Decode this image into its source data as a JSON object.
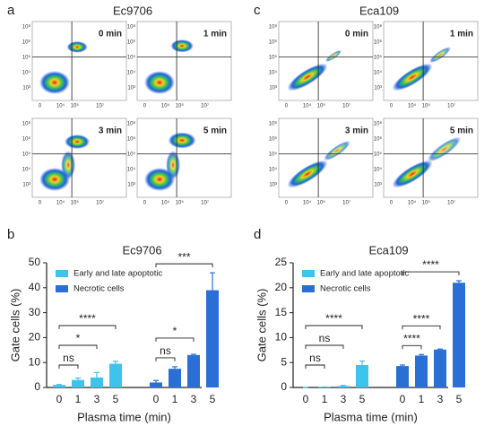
{
  "panels": {
    "a": {
      "label": "a",
      "title": "Ec9706",
      "times": [
        "0 min",
        "1 min",
        "3 min",
        "5 min"
      ]
    },
    "c": {
      "label": "c",
      "title": "Eca109",
      "times": [
        "0 min",
        "1 min",
        "3 min",
        "5 min"
      ]
    },
    "y_ticks": [
      "10⁸",
      "10⁶",
      "10⁵",
      "10⁴",
      "10³"
    ],
    "x_ticks": [
      "0",
      "10⁴",
      "10⁵",
      "10⁷"
    ]
  },
  "chart_data": [
    {
      "type": "bar",
      "label": "b",
      "title": "Ec9706",
      "y_label": "Gate cells (%)",
      "x_label": "Plasma time (min)",
      "categories": [
        "0",
        "1",
        "3",
        "5"
      ],
      "series": [
        {
          "name": "Early and late apoptotic",
          "color": "#3ec3ec",
          "values": [
            1,
            3,
            4,
            9.5
          ],
          "errors": [
            0.2,
            0.8,
            2,
            1
          ]
        },
        {
          "name": "Necrotic cells",
          "color": "#2a6fd6",
          "values": [
            2,
            7.5,
            13,
            39
          ],
          "errors": [
            0.8,
            0.8,
            0.3,
            7
          ]
        }
      ],
      "annotations": [
        "ns",
        "*",
        "****",
        "ns",
        "*",
        "***"
      ],
      "ylim": [
        0,
        50
      ],
      "yticks": [
        0,
        10,
        20,
        30,
        40,
        50
      ]
    },
    {
      "type": "bar",
      "label": "d",
      "title": "Eca109",
      "y_label": "Gate cells (%)",
      "x_label": "Plasma time (min)",
      "categories": [
        "0",
        "1",
        "3",
        "5"
      ],
      "series": [
        {
          "name": "Early and late apoptotic",
          "color": "#3ec3ec",
          "values": [
            0,
            0.1,
            0.3,
            4.5
          ],
          "errors": [
            0,
            0,
            0.1,
            0.8
          ]
        },
        {
          "name": "Necrotic cells",
          "color": "#2a6fd6",
          "values": [
            4.3,
            6.4,
            7.6,
            21
          ],
          "errors": [
            0.2,
            0.2,
            0.1,
            0.4
          ]
        }
      ],
      "annotations": [
        "ns",
        "ns",
        "****",
        "****",
        "****",
        "****"
      ],
      "ylim": [
        0,
        25
      ],
      "yticks": [
        0,
        5,
        10,
        15,
        20,
        25
      ]
    }
  ]
}
